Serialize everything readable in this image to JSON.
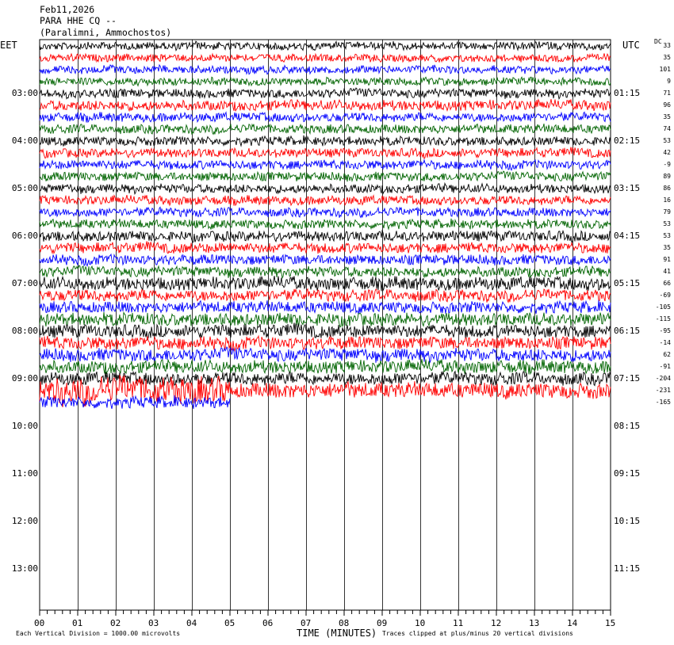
{
  "header": {
    "date": "Feb11,2026",
    "station": "PARA HHE CQ --",
    "location": "(Paralimni, Ammochostos)"
  },
  "chart_data": {
    "type": "line",
    "title": "PARA HHE CQ --",
    "left_timezone": "EET",
    "right_timezone": "UTC",
    "dc_label": "DC",
    "xlabel": "TIME (MINUTES)",
    "x_ticks": [
      "00",
      "01",
      "02",
      "03",
      "04",
      "05",
      "06",
      "07",
      "08",
      "09",
      "10",
      "11",
      "12",
      "13",
      "14",
      "15"
    ],
    "xlim": [
      0,
      15
    ],
    "left_hour_labels": [
      "03:00",
      "04:00",
      "05:00",
      "06:00",
      "07:00",
      "08:00",
      "09:00",
      "10:00",
      "11:00",
      "12:00",
      "13:00"
    ],
    "right_hour_labels": [
      "01:15",
      "02:15",
      "03:15",
      "04:15",
      "05:15",
      "06:15",
      "07:15",
      "08:15",
      "09:15",
      "10:15",
      "11:15"
    ],
    "row_colors": [
      "#000000",
      "#ff0000",
      "#0000ff",
      "#006400"
    ],
    "traces": [
      {
        "dc": "33",
        "amplitude": 0.3
      },
      {
        "dc": "35",
        "amplitude": 0.3
      },
      {
        "dc": "101",
        "amplitude": 0.3
      },
      {
        "dc": "9",
        "amplitude": 0.3
      },
      {
        "dc": "71",
        "amplitude": 0.35
      },
      {
        "dc": "96",
        "amplitude": 0.4
      },
      {
        "dc": "35",
        "amplitude": 0.35
      },
      {
        "dc": "74",
        "amplitude": 0.35
      },
      {
        "dc": "53",
        "amplitude": 0.35
      },
      {
        "dc": "42",
        "amplitude": 0.35
      },
      {
        "dc": "-9",
        "amplitude": 0.35
      },
      {
        "dc": "89",
        "amplitude": 0.35
      },
      {
        "dc": "86",
        "amplitude": 0.35
      },
      {
        "dc": "16",
        "amplitude": 0.35
      },
      {
        "dc": "79",
        "amplitude": 0.35
      },
      {
        "dc": "53",
        "amplitude": 0.35
      },
      {
        "dc": "53",
        "amplitude": 0.4
      },
      {
        "dc": "35",
        "amplitude": 0.4
      },
      {
        "dc": "91",
        "amplitude": 0.4
      },
      {
        "dc": "41",
        "amplitude": 0.4
      },
      {
        "dc": "66",
        "amplitude": 0.5
      },
      {
        "dc": "-69",
        "amplitude": 0.45
      },
      {
        "dc": "-105",
        "amplitude": 0.45
      },
      {
        "dc": "-115",
        "amplitude": 0.5
      },
      {
        "dc": "-95",
        "amplitude": 0.5
      },
      {
        "dc": "-14",
        "amplitude": 0.5
      },
      {
        "dc": "62",
        "amplitude": 0.5
      },
      {
        "dc": "-91",
        "amplitude": 0.5
      },
      {
        "dc": "-204",
        "amplitude": 0.5
      },
      {
        "dc": "-231",
        "amplitude": 0.6
      },
      {
        "dc": "-165",
        "amplitude": 0.45,
        "end_minute": 5
      }
    ],
    "footer_left": "Each Vertical Division = 1000.00 microvolts",
    "footer_right": "Traces clipped at plus/minus 20 vertical divisions"
  }
}
